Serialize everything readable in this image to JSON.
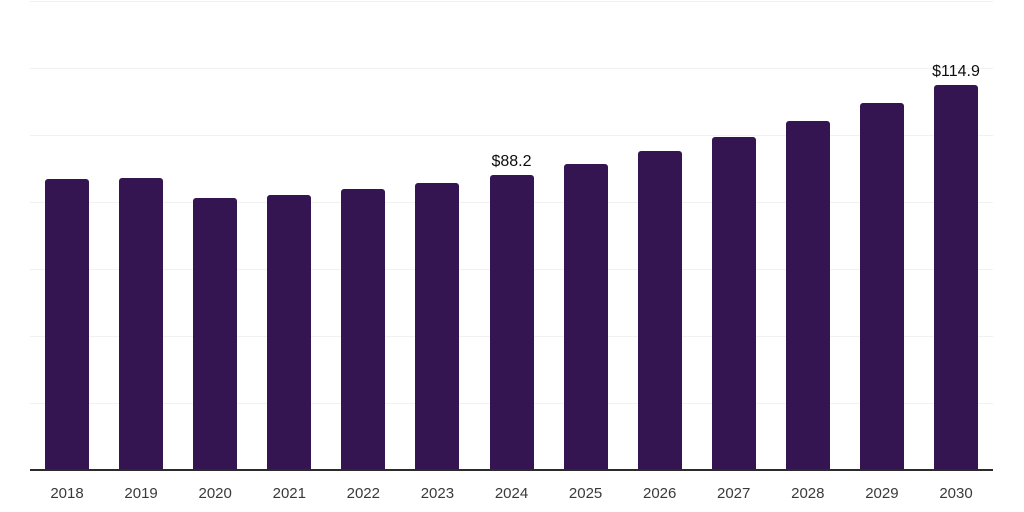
{
  "chart_data": {
    "type": "bar",
    "title": "",
    "xlabel": "",
    "ylabel": "",
    "categories": [
      "2018",
      "2019",
      "2020",
      "2021",
      "2022",
      "2023",
      "2024",
      "2025",
      "2026",
      "2027",
      "2028",
      "2029",
      "2030"
    ],
    "values": [
      86.8,
      87.3,
      81.1,
      82.1,
      83.8,
      85.8,
      88.2,
      91.3,
      95.1,
      99.5,
      104.2,
      109.6,
      114.9
    ],
    "data_labels": [
      {
        "index": 6,
        "text": "$88.2"
      },
      {
        "index": 12,
        "text": "$114.9"
      }
    ],
    "ylim": [
      0,
      140
    ],
    "grid_interval": 20,
    "grid": "horizontal",
    "legend_position": "none",
    "colors": {
      "bar": "#341451",
      "gridline": "#f1f1f1",
      "axis": "#2b2b2b",
      "tick_label": "#3a3a3a",
      "data_label": "#0d0d0d",
      "background": "#ffffff"
    }
  }
}
